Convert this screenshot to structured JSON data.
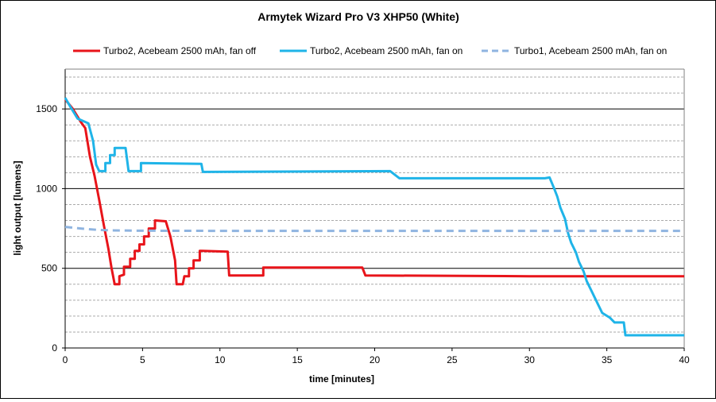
{
  "chart_data": {
    "type": "line",
    "title": "Armytek Wizard Pro V3 XHP50 (White)",
    "xlabel": "time [minutes]",
    "ylabel": "light output [lumens]",
    "xlim": [
      0,
      40
    ],
    "ylim": [
      0,
      1750
    ],
    "x_ticks": [
      0,
      5,
      10,
      15,
      20,
      25,
      30,
      35,
      40
    ],
    "y_ticks": [
      0,
      500,
      1000,
      1500
    ],
    "grid": {
      "major_y": 500,
      "minor_y": 100,
      "vertical": false
    },
    "legend_position": "top",
    "series": [
      {
        "name": "Turbo2, Acebeam 2500 mAh, fan off",
        "color": "#e8141a",
        "dash": "solid",
        "points": [
          [
            0,
            1560
          ],
          [
            0.5,
            1500
          ],
          [
            1,
            1420
          ],
          [
            1.3,
            1380
          ],
          [
            1.6,
            1200
          ],
          [
            1.9,
            1080
          ],
          [
            2.2,
            930
          ],
          [
            2.5,
            770
          ],
          [
            2.8,
            620
          ],
          [
            3.0,
            500
          ],
          [
            3.2,
            400
          ],
          [
            3.5,
            400
          ],
          [
            3.5,
            450
          ],
          [
            3.8,
            460
          ],
          [
            3.8,
            510
          ],
          [
            4.2,
            510
          ],
          [
            4.2,
            560
          ],
          [
            4.5,
            560
          ],
          [
            4.5,
            610
          ],
          [
            4.8,
            610
          ],
          [
            4.8,
            650
          ],
          [
            5.1,
            650
          ],
          [
            5.1,
            700
          ],
          [
            5.4,
            700
          ],
          [
            5.4,
            750
          ],
          [
            5.8,
            750
          ],
          [
            5.8,
            800
          ],
          [
            6.5,
            795
          ],
          [
            6.8,
            700
          ],
          [
            7.1,
            550
          ],
          [
            7.2,
            400
          ],
          [
            7.6,
            400
          ],
          [
            7.7,
            450
          ],
          [
            8.0,
            450
          ],
          [
            8.0,
            500
          ],
          [
            8.3,
            500
          ],
          [
            8.3,
            550
          ],
          [
            8.7,
            550
          ],
          [
            8.7,
            610
          ],
          [
            10.5,
            605
          ],
          [
            10.6,
            455
          ],
          [
            12.8,
            455
          ],
          [
            12.8,
            505
          ],
          [
            19.2,
            505
          ],
          [
            19.4,
            455
          ],
          [
            30,
            450
          ],
          [
            35,
            450
          ],
          [
            40,
            450
          ]
        ]
      },
      {
        "name": "Turbo2, Acebeam 2500 mAh, fan on",
        "color": "#1fb4e8",
        "dash": "solid",
        "points": [
          [
            0,
            1570
          ],
          [
            0.3,
            1520
          ],
          [
            0.8,
            1440
          ],
          [
            1.5,
            1410
          ],
          [
            1.8,
            1300
          ],
          [
            2.0,
            1150
          ],
          [
            2.2,
            1110
          ],
          [
            2.6,
            1110
          ],
          [
            2.6,
            1160
          ],
          [
            2.9,
            1160
          ],
          [
            2.9,
            1210
          ],
          [
            3.2,
            1210
          ],
          [
            3.2,
            1255
          ],
          [
            3.9,
            1255
          ],
          [
            4.1,
            1110
          ],
          [
            4.9,
            1110
          ],
          [
            4.9,
            1160
          ],
          [
            8.8,
            1155
          ],
          [
            8.9,
            1105
          ],
          [
            21.0,
            1110
          ],
          [
            21.6,
            1065
          ],
          [
            31.0,
            1065
          ],
          [
            31.3,
            1070
          ],
          [
            31.6,
            1000
          ],
          [
            31.8,
            950
          ],
          [
            32.0,
            880
          ],
          [
            32.3,
            810
          ],
          [
            32.5,
            720
          ],
          [
            32.7,
            660
          ],
          [
            33.0,
            600
          ],
          [
            33.2,
            540
          ],
          [
            33.5,
            480
          ],
          [
            33.7,
            420
          ],
          [
            33.9,
            380
          ],
          [
            34.1,
            340
          ],
          [
            34.4,
            280
          ],
          [
            34.7,
            220
          ],
          [
            35.2,
            190
          ],
          [
            35.5,
            160
          ],
          [
            36.1,
            160
          ],
          [
            36.2,
            80
          ],
          [
            40,
            80
          ]
        ]
      },
      {
        "name": "Turbo1, Acebeam 2500 mAh, fan on",
        "color": "#8fb4e0",
        "dash": "dashed",
        "points": [
          [
            0,
            760
          ],
          [
            1,
            750
          ],
          [
            2,
            742
          ],
          [
            3,
            738
          ],
          [
            5,
            736
          ],
          [
            10,
            735
          ],
          [
            20,
            735
          ],
          [
            30,
            735
          ],
          [
            40,
            735
          ]
        ]
      }
    ]
  }
}
